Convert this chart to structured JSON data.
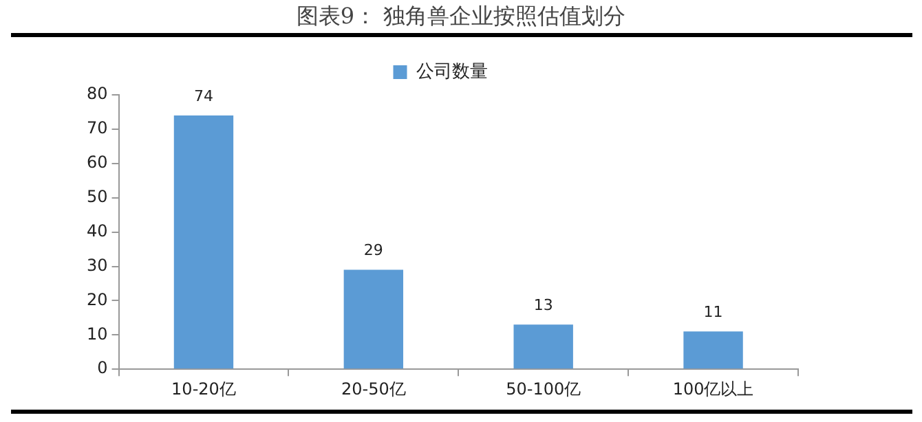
{
  "chart_data": {
    "type": "bar",
    "title": "图表9：  独角兽企业按照估值划分",
    "categories": [
      "10-20亿",
      "20-50亿",
      "50-100亿",
      "100亿以上"
    ],
    "series": [
      {
        "name": "公司数量",
        "color": "#5b9bd5",
        "values": [
          74,
          29,
          13,
          11
        ]
      }
    ],
    "ylim": [
      0,
      80
    ],
    "yticks": [
      0,
      10,
      20,
      30,
      40,
      50,
      60,
      70,
      80
    ],
    "grid": false,
    "legend": "top",
    "data_labels": true
  }
}
